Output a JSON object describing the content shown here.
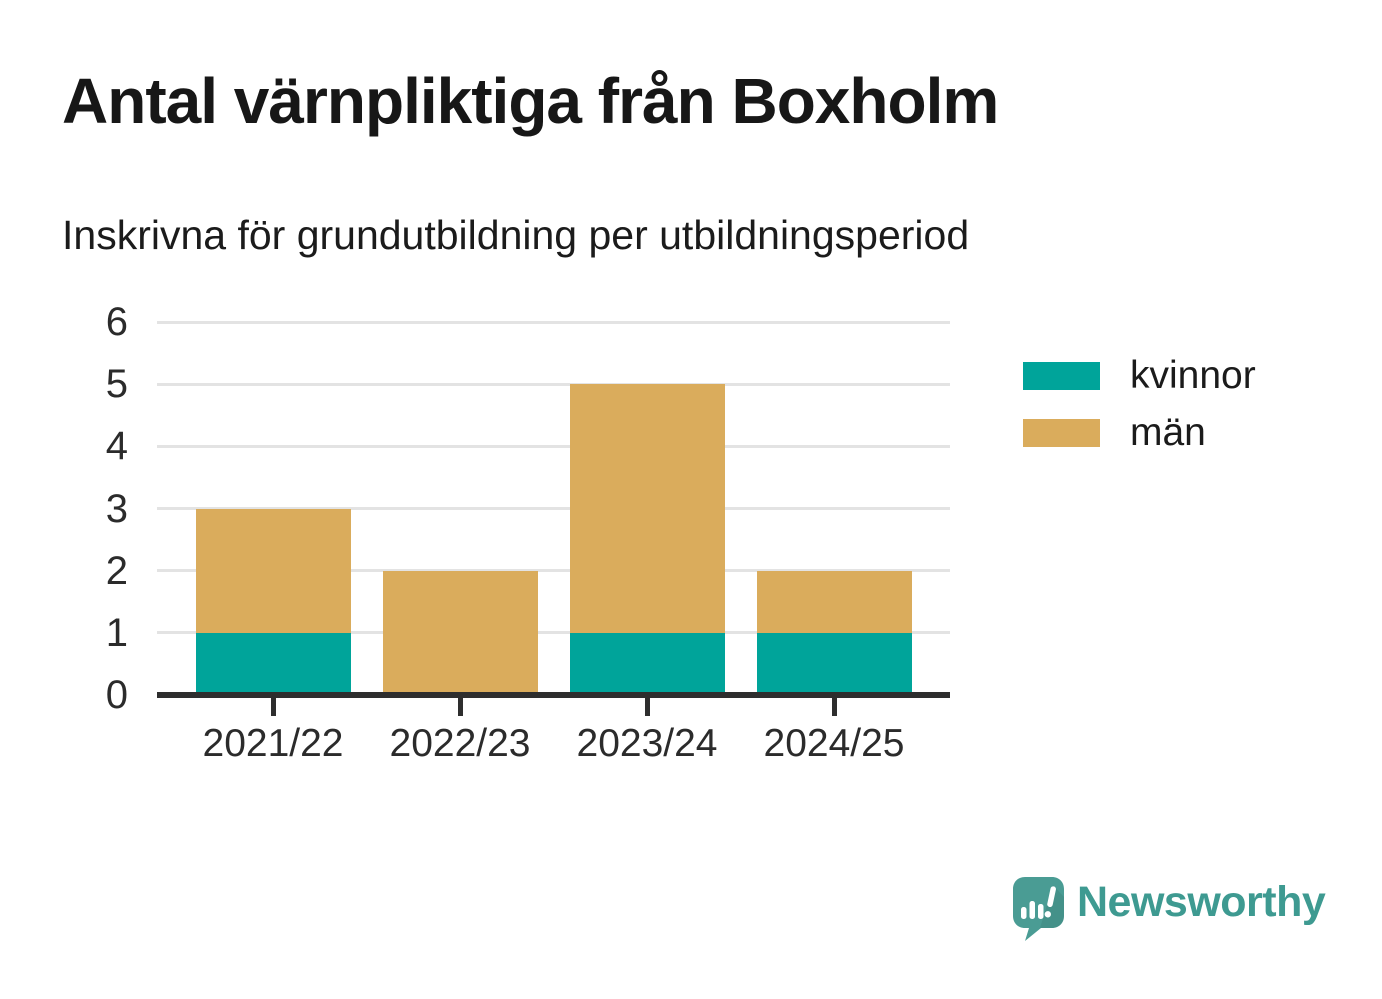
{
  "header": {
    "title": "Antal värnpliktiga från Boxholm",
    "subtitle": "Inskrivna för grundutbildning per utbildningsperiod"
  },
  "chart_data": {
    "type": "bar",
    "stacked": true,
    "title": "Antal värnpliktiga från Boxholm",
    "subtitle": "Inskrivna för grundutbildning per utbildningsperiod",
    "categories": [
      "2021/22",
      "2022/23",
      "2023/24",
      "2024/25"
    ],
    "series": [
      {
        "name": "kvinnor",
        "color": "#00A49A",
        "values": [
          1,
          0,
          1,
          1
        ]
      },
      {
        "name": "män",
        "color": "#DAAC5C",
        "values": [
          2,
          2,
          4,
          1
        ]
      }
    ],
    "totals": [
      3,
      2,
      5,
      2
    ],
    "ylim": [
      0,
      6
    ],
    "yticks": [
      0,
      1,
      2,
      3,
      4,
      5,
      6
    ],
    "xlabel": "",
    "ylabel": "",
    "grid": "horizontal",
    "legend_position": "right"
  },
  "branding": {
    "logo_text": "Newsworthy",
    "logo_icon": "speech-bubble-bar-chart-icon",
    "text_color": "#3E9A91",
    "icon_color": "#4A9C94"
  }
}
